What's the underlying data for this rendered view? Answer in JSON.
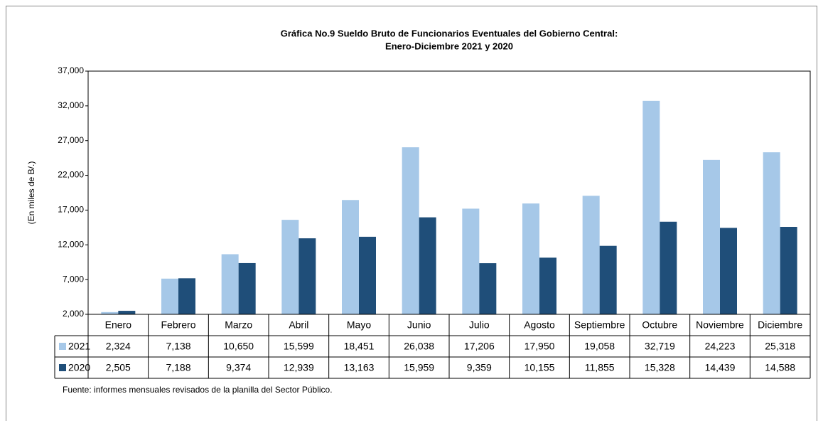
{
  "chart_data": {
    "type": "bar",
    "title": [
      "Gráfica No.9 Sueldo Bruto de Funcionarios Eventuales del Gobierno Central:",
      "Enero-Diciembre 2021 y 2020"
    ],
    "y_label": "(En miles de B/.)",
    "source": "Fuente: informes mensuales revisados de la planilla del Sector Público.",
    "categories": [
      "Enero",
      "Febrero",
      "Marzo",
      "Abril",
      "Mayo",
      "Junio",
      "Julio",
      "Agosto",
      "Septiembre",
      "Octubre",
      "Noviembre",
      "Diciembre"
    ],
    "series": [
      {
        "name": "2021",
        "color": "#a6c8e8",
        "values": [
          2324,
          7138,
          10650,
          15599,
          18451,
          26038,
          17206,
          17950,
          19058,
          32719,
          24223,
          25318
        ],
        "value_labels": [
          "2,324",
          "7,138",
          "10,650",
          "15,599",
          "18,451",
          "26,038",
          "17,206",
          "17,950",
          "19,058",
          "32,719",
          "24,223",
          "25,318"
        ]
      },
      {
        "name": "2020",
        "color": "#1f4e79",
        "values": [
          2505,
          7188,
          9374,
          12939,
          13163,
          15959,
          9359,
          10155,
          11855,
          15328,
          14439,
          14588
        ],
        "value_labels": [
          "2,505",
          "7,188",
          "9,374",
          "12,939",
          "13,163",
          "15,959",
          "9,359",
          "10,155",
          "11,855",
          "15,328",
          "14,439",
          "14,588"
        ]
      }
    ],
    "ylim": [
      2000,
      37000
    ],
    "yticks": [
      {
        "value": 2000,
        "label": "2,000"
      },
      {
        "value": 7000,
        "label": "7,000"
      },
      {
        "value": 12000,
        "label": "12,000"
      },
      {
        "value": 17000,
        "label": "17,000"
      },
      {
        "value": 22000,
        "label": "22,000"
      },
      {
        "value": 27000,
        "label": "27,000"
      },
      {
        "value": 32000,
        "label": "32,000"
      },
      {
        "value": 37000,
        "label": "37,000"
      }
    ],
    "grid": false
  }
}
